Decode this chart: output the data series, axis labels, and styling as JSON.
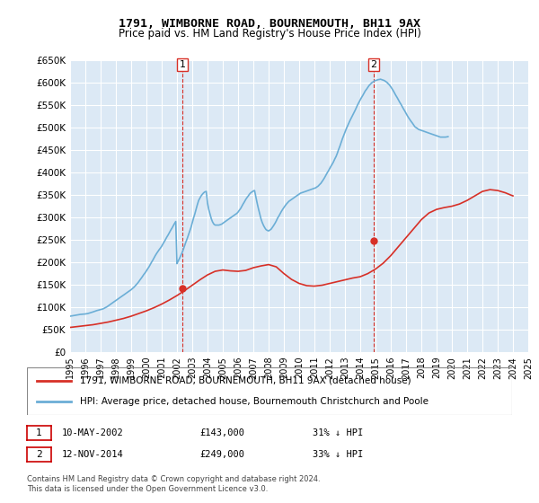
{
  "title": "1791, WIMBORNE ROAD, BOURNEMOUTH, BH11 9AX",
  "subtitle": "Price paid vs. HM Land Registry's House Price Index (HPI)",
  "legend_line1": "1791, WIMBORNE ROAD, BOURNEMOUTH, BH11 9AX (detached house)",
  "legend_line2": "HPI: Average price, detached house, Bournemouth Christchurch and Poole",
  "footer1": "Contains HM Land Registry data © Crown copyright and database right 2024.",
  "footer2": "This data is licensed under the Open Government Licence v3.0.",
  "table_row1": [
    "1",
    "10-MAY-2002",
    "£143,000",
    "31% ↓ HPI"
  ],
  "table_row2": [
    "2",
    "12-NOV-2014",
    "£249,000",
    "33% ↓ HPI"
  ],
  "ylim": [
    0,
    650000
  ],
  "yticks": [
    0,
    50000,
    100000,
    150000,
    200000,
    250000,
    300000,
    350000,
    400000,
    450000,
    500000,
    550000,
    600000,
    650000
  ],
  "ytick_labels": [
    "£0",
    "£50K",
    "£100K",
    "£150K",
    "£200K",
    "£250K",
    "£300K",
    "£350K",
    "£400K",
    "£450K",
    "£500K",
    "£550K",
    "£600K",
    "£650K"
  ],
  "hpi_color": "#6baed6",
  "price_color": "#d73027",
  "marker_color": "#d73027",
  "vline_color": "#d73027",
  "bg_color": "#dce9f5",
  "grid_color": "#ffffff",
  "sale1_x": 2002.36,
  "sale1_y": 143000,
  "sale2_x": 2014.87,
  "sale2_y": 249000,
  "hpi_x": [
    1995,
    1995.08,
    1995.17,
    1995.25,
    1995.33,
    1995.42,
    1995.5,
    1995.58,
    1995.67,
    1995.75,
    1995.83,
    1995.92,
    1996.0,
    1996.08,
    1996.17,
    1996.25,
    1996.33,
    1996.42,
    1996.5,
    1996.58,
    1996.67,
    1996.75,
    1996.83,
    1996.92,
    1997.0,
    1997.08,
    1997.17,
    1997.25,
    1997.33,
    1997.42,
    1997.5,
    1997.58,
    1997.67,
    1997.75,
    1997.83,
    1997.92,
    1998.0,
    1998.08,
    1998.17,
    1998.25,
    1998.33,
    1998.42,
    1998.5,
    1998.58,
    1998.67,
    1998.75,
    1998.83,
    1998.92,
    1999.0,
    1999.08,
    1999.17,
    1999.25,
    1999.33,
    1999.42,
    1999.5,
    1999.58,
    1999.67,
    1999.75,
    1999.83,
    1999.92,
    2000.0,
    2000.08,
    2000.17,
    2000.25,
    2000.33,
    2000.42,
    2000.5,
    2000.58,
    2000.67,
    2000.75,
    2000.83,
    2000.92,
    2001.0,
    2001.08,
    2001.17,
    2001.25,
    2001.33,
    2001.42,
    2001.5,
    2001.58,
    2001.67,
    2001.75,
    2001.83,
    2001.92,
    2002.0,
    2002.08,
    2002.17,
    2002.25,
    2002.33,
    2002.42,
    2002.5,
    2002.58,
    2002.67,
    2002.75,
    2002.83,
    2002.92,
    2003.0,
    2003.08,
    2003.17,
    2003.25,
    2003.33,
    2003.42,
    2003.5,
    2003.58,
    2003.67,
    2003.75,
    2003.83,
    2003.92,
    2004.0,
    2004.08,
    2004.17,
    2004.25,
    2004.33,
    2004.42,
    2004.5,
    2004.58,
    2004.67,
    2004.75,
    2004.83,
    2004.92,
    2005.0,
    2005.08,
    2005.17,
    2005.25,
    2005.33,
    2005.42,
    2005.5,
    2005.58,
    2005.67,
    2005.75,
    2005.83,
    2005.92,
    2006.0,
    2006.08,
    2006.17,
    2006.25,
    2006.33,
    2006.42,
    2006.5,
    2006.58,
    2006.67,
    2006.75,
    2006.83,
    2006.92,
    2007.0,
    2007.08,
    2007.17,
    2007.25,
    2007.33,
    2007.42,
    2007.5,
    2007.58,
    2007.67,
    2007.75,
    2007.83,
    2007.92,
    2008.0,
    2008.08,
    2008.17,
    2008.25,
    2008.33,
    2008.42,
    2008.5,
    2008.58,
    2008.67,
    2008.75,
    2008.83,
    2008.92,
    2009.0,
    2009.08,
    2009.17,
    2009.25,
    2009.33,
    2009.42,
    2009.5,
    2009.58,
    2009.67,
    2009.75,
    2009.83,
    2009.92,
    2010.0,
    2010.08,
    2010.17,
    2010.25,
    2010.33,
    2010.42,
    2010.5,
    2010.58,
    2010.67,
    2010.75,
    2010.83,
    2010.92,
    2011.0,
    2011.08,
    2011.17,
    2011.25,
    2011.33,
    2011.42,
    2011.5,
    2011.58,
    2011.67,
    2011.75,
    2011.83,
    2011.92,
    2012.0,
    2012.08,
    2012.17,
    2012.25,
    2012.33,
    2012.42,
    2012.5,
    2012.58,
    2012.67,
    2012.75,
    2012.83,
    2012.92,
    2013.0,
    2013.08,
    2013.17,
    2013.25,
    2013.33,
    2013.42,
    2013.5,
    2013.58,
    2013.67,
    2013.75,
    2013.83,
    2013.92,
    2014.0,
    2014.08,
    2014.17,
    2014.25,
    2014.33,
    2014.42,
    2014.5,
    2014.58,
    2014.67,
    2014.75,
    2014.83,
    2014.92,
    2015.0,
    2015.08,
    2015.17,
    2015.25,
    2015.33,
    2015.42,
    2015.5,
    2015.58,
    2015.67,
    2015.75,
    2015.83,
    2015.92,
    2016.0,
    2016.08,
    2016.17,
    2016.25,
    2016.33,
    2016.42,
    2016.5,
    2016.58,
    2016.67,
    2016.75,
    2016.83,
    2016.92,
    2017.0,
    2017.08,
    2017.17,
    2017.25,
    2017.33,
    2017.42,
    2017.5,
    2017.58,
    2017.67,
    2017.75,
    2017.83,
    2017.92,
    2018.0,
    2018.08,
    2018.17,
    2018.25,
    2018.33,
    2018.42,
    2018.5,
    2018.58,
    2018.67,
    2018.75,
    2018.83,
    2018.92,
    2019.0,
    2019.08,
    2019.17,
    2019.25,
    2019.33,
    2019.42,
    2019.5,
    2019.58,
    2019.67,
    2019.75,
    2019.83,
    2019.92,
    2020.0,
    2020.08,
    2020.17,
    2020.25,
    2020.33,
    2020.42,
    2020.5,
    2020.58,
    2020.67,
    2020.75,
    2020.83,
    2020.92,
    2021.0,
    2021.08,
    2021.17,
    2021.25,
    2021.33,
    2021.42,
    2021.5,
    2021.58,
    2021.67,
    2021.75,
    2021.83,
    2021.92,
    2022.0,
    2022.08,
    2022.17,
    2022.25,
    2022.33,
    2022.42,
    2022.5,
    2022.58,
    2022.67,
    2022.75,
    2022.83,
    2022.92,
    2023.0,
    2023.08,
    2023.17,
    2023.25,
    2023.33,
    2023.42,
    2023.5,
    2023.58,
    2023.67,
    2023.75,
    2023.83,
    2023.92,
    2024.0,
    2024.08,
    2024.17,
    2024.25
  ],
  "hpi_y": [
    80000,
    80500,
    81000,
    81500,
    82000,
    82500,
    83000,
    83500,
    84000,
    84200,
    84500,
    84800,
    85000,
    85500,
    86000,
    86800,
    87500,
    88500,
    89500,
    90500,
    91500,
    92500,
    93200,
    93800,
    94500,
    95500,
    96500,
    98000,
    99500,
    101000,
    103000,
    105000,
    107000,
    109000,
    111000,
    113000,
    115000,
    117000,
    119000,
    121000,
    123000,
    125000,
    127000,
    129000,
    131000,
    133000,
    135000,
    137000,
    139000,
    141500,
    144000,
    147000,
    150000,
    153500,
    157000,
    161000,
    165000,
    169000,
    173000,
    177000,
    181000,
    185500,
    190000,
    195000,
    200000,
    205000,
    210000,
    215000,
    220000,
    224000,
    228000,
    232000,
    236000,
    241000,
    246000,
    251000,
    256000,
    261000,
    266000,
    271000,
    276000,
    281000,
    286000,
    291000,
    197000,
    203000,
    209000,
    215000,
    221000,
    229000,
    237000,
    245000,
    253000,
    261000,
    269000,
    278000,
    288000,
    298000,
    308000,
    318000,
    328000,
    338000,
    343000,
    348000,
    352000,
    355000,
    357000,
    358000,
    332000,
    318000,
    307000,
    297000,
    290000,
    285000,
    283000,
    283000,
    283000,
    283000,
    284000,
    285000,
    287000,
    289000,
    291000,
    293000,
    295000,
    297000,
    299000,
    301000,
    303000,
    305000,
    307000,
    309000,
    312000,
    316000,
    320000,
    325000,
    330000,
    335000,
    340000,
    344000,
    348000,
    352000,
    355000,
    357000,
    359000,
    360000,
    345000,
    332000,
    320000,
    308000,
    297000,
    289000,
    282000,
    277000,
    273000,
    271000,
    270000,
    272000,
    274000,
    278000,
    282000,
    287000,
    292000,
    298000,
    303000,
    308000,
    313000,
    318000,
    322000,
    326000,
    330000,
    333000,
    336000,
    338000,
    340000,
    342000,
    344000,
    346000,
    348000,
    350000,
    352000,
    354000,
    355000,
    356000,
    357000,
    358000,
    359000,
    360000,
    361000,
    362000,
    363000,
    364000,
    365000,
    366000,
    368000,
    370000,
    373000,
    376000,
    380000,
    384000,
    389000,
    394000,
    399000,
    404000,
    409000,
    414000,
    419000,
    424000,
    430000,
    436000,
    443000,
    451000,
    459000,
    467000,
    475000,
    483000,
    490000,
    497000,
    504000,
    510000,
    516000,
    522000,
    527000,
    533000,
    539000,
    545000,
    551000,
    557000,
    562000,
    567000,
    572000,
    577000,
    582000,
    586000,
    590000,
    594000,
    597000,
    600000,
    602000,
    604000,
    605000,
    606000,
    607000,
    607500,
    608000,
    607000,
    606000,
    605000,
    603000,
    601000,
    598000,
    595000,
    591000,
    587000,
    582000,
    577000,
    572000,
    567000,
    562000,
    557000,
    552000,
    547000,
    542000,
    537000,
    532000,
    527000,
    522000,
    518000,
    514000,
    510000,
    506000,
    502000,
    500000,
    498000,
    496000,
    495000,
    494000,
    493000,
    492000,
    491000,
    490000,
    489000,
    488000,
    487000,
    486000,
    485000,
    484000,
    483000,
    482000,
    481000,
    480000,
    479000,
    479000,
    479000,
    479000,
    479000,
    479500,
    480000
  ],
  "price_x": [
    1995.0,
    1995.5,
    1996.0,
    1996.5,
    1997.0,
    1997.5,
    1998.0,
    1998.5,
    1999.0,
    1999.5,
    2000.0,
    2000.5,
    2001.0,
    2001.5,
    2002.0,
    2002.5,
    2003.0,
    2003.5,
    2004.0,
    2004.5,
    2005.0,
    2005.5,
    2006.0,
    2006.5,
    2007.0,
    2007.5,
    2008.0,
    2008.5,
    2009.0,
    2009.5,
    2010.0,
    2010.5,
    2011.0,
    2011.5,
    2012.0,
    2012.5,
    2013.0,
    2013.5,
    2014.0,
    2014.5,
    2015.0,
    2015.5,
    2016.0,
    2016.5,
    2017.0,
    2017.5,
    2018.0,
    2018.5,
    2019.0,
    2019.5,
    2020.0,
    2020.5,
    2021.0,
    2021.5,
    2022.0,
    2022.5,
    2023.0,
    2023.5,
    2024.0
  ],
  "price_y": [
    55000,
    57000,
    59000,
    61000,
    64000,
    67000,
    71000,
    75000,
    80000,
    86000,
    92000,
    99000,
    107000,
    116000,
    126000,
    137000,
    149000,
    161000,
    172000,
    180000,
    183000,
    181000,
    180000,
    182000,
    188000,
    192000,
    195000,
    190000,
    175000,
    162000,
    153000,
    148000,
    147000,
    149000,
    153000,
    157000,
    161000,
    165000,
    168000,
    175000,
    185000,
    198000,
    215000,
    235000,
    255000,
    275000,
    295000,
    310000,
    318000,
    322000,
    325000,
    330000,
    338000,
    348000,
    358000,
    362000,
    360000,
    355000,
    348000
  ],
  "xtick_years": [
    1995,
    1996,
    1997,
    1998,
    1999,
    2000,
    2001,
    2002,
    2003,
    2004,
    2005,
    2006,
    2007,
    2008,
    2009,
    2010,
    2011,
    2012,
    2013,
    2014,
    2015,
    2016,
    2017,
    2018,
    2019,
    2020,
    2021,
    2022,
    2023,
    2024,
    2025
  ]
}
